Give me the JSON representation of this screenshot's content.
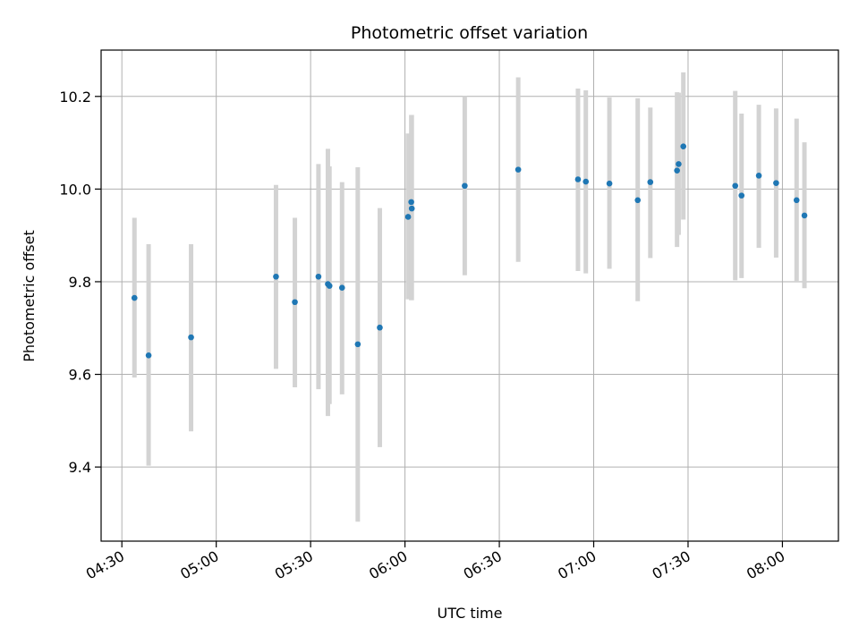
{
  "chart_data": {
    "type": "scatter",
    "title": "Photometric offset variation",
    "xlabel": "UTC time",
    "ylabel": "Photometric offset",
    "x_tick_labels": [
      "04:30",
      "05:00",
      "05:30",
      "06:00",
      "06:30",
      "07:00",
      "07:30",
      "08:00"
    ],
    "y_tick_labels": [
      "9.4",
      "9.6",
      "9.8",
      "10.0",
      "10.2"
    ],
    "x_ticks_minutes": [
      270,
      300,
      330,
      360,
      390,
      420,
      450,
      480
    ],
    "y_ticks": [
      9.4,
      9.6,
      9.8,
      10.0,
      10.2
    ],
    "xlim_minutes": [
      263.4,
      497.8
    ],
    "ylim": [
      9.24,
      10.3
    ],
    "grid": true,
    "point_color": "#1f77b4",
    "errorbar_color": "#d3d3d3",
    "points": [
      {
        "time": "04:34:00",
        "y": 9.765,
        "lo": 9.593,
        "hi": 9.938
      },
      {
        "time": "04:38:30",
        "y": 9.641,
        "lo": 9.403,
        "hi": 9.881
      },
      {
        "time": "04:52:00",
        "y": 9.68,
        "lo": 9.477,
        "hi": 9.881
      },
      {
        "time": "05:19:00",
        "y": 9.811,
        "lo": 9.612,
        "hi": 10.009
      },
      {
        "time": "05:25:00",
        "y": 9.756,
        "lo": 9.572,
        "hi": 9.938
      },
      {
        "time": "05:32:30",
        "y": 9.811,
        "lo": 9.568,
        "hi": 10.054
      },
      {
        "time": "05:35:30",
        "y": 9.795,
        "lo": 9.51,
        "hi": 10.087
      },
      {
        "time": "05:36:00",
        "y": 9.791,
        "lo": 9.536,
        "hi": 10.049
      },
      {
        "time": "05:40:00",
        "y": 9.787,
        "lo": 9.557,
        "hi": 10.015
      },
      {
        "time": "05:45:00",
        "y": 9.665,
        "lo": 9.282,
        "hi": 10.047
      },
      {
        "time": "05:52:00",
        "y": 9.701,
        "lo": 9.443,
        "hi": 9.959
      },
      {
        "time": "06:01:00",
        "y": 9.94,
        "lo": 9.762,
        "hi": 10.12
      },
      {
        "time": "06:02:00",
        "y": 9.972,
        "lo": 9.76,
        "hi": 10.16
      },
      {
        "time": "06:02:10",
        "y": 9.958,
        "lo": 9.76,
        "hi": 10.16
      },
      {
        "time": "06:19:00",
        "y": 10.007,
        "lo": 9.814,
        "hi": 10.2
      },
      {
        "time": "06:36:00",
        "y": 10.042,
        "lo": 9.843,
        "hi": 10.241
      },
      {
        "time": "06:55:00",
        "y": 10.021,
        "lo": 9.823,
        "hi": 10.217
      },
      {
        "time": "06:57:30",
        "y": 10.016,
        "lo": 9.818,
        "hi": 10.213
      },
      {
        "time": "07:05:00",
        "y": 10.012,
        "lo": 9.828,
        "hi": 10.198
      },
      {
        "time": "07:14:00",
        "y": 9.976,
        "lo": 9.758,
        "hi": 10.196
      },
      {
        "time": "07:18:00",
        "y": 10.015,
        "lo": 9.851,
        "hi": 10.176
      },
      {
        "time": "07:26:30",
        "y": 10.04,
        "lo": 9.875,
        "hi": 10.209
      },
      {
        "time": "07:27:00",
        "y": 10.054,
        "lo": 9.901,
        "hi": 10.208
      },
      {
        "time": "07:28:30",
        "y": 10.092,
        "lo": 9.934,
        "hi": 10.252
      },
      {
        "time": "07:45:00",
        "y": 10.007,
        "lo": 9.803,
        "hi": 10.212
      },
      {
        "time": "07:47:00",
        "y": 9.986,
        "lo": 9.808,
        "hi": 10.163
      },
      {
        "time": "07:52:30",
        "y": 10.029,
        "lo": 9.873,
        "hi": 10.182
      },
      {
        "time": "07:58:00",
        "y": 10.013,
        "lo": 9.852,
        "hi": 10.174
      },
      {
        "time": "08:04:30",
        "y": 9.976,
        "lo": 9.8,
        "hi": 10.152
      },
      {
        "time": "08:07:00",
        "y": 9.943,
        "lo": 9.786,
        "hi": 10.101
      }
    ]
  }
}
